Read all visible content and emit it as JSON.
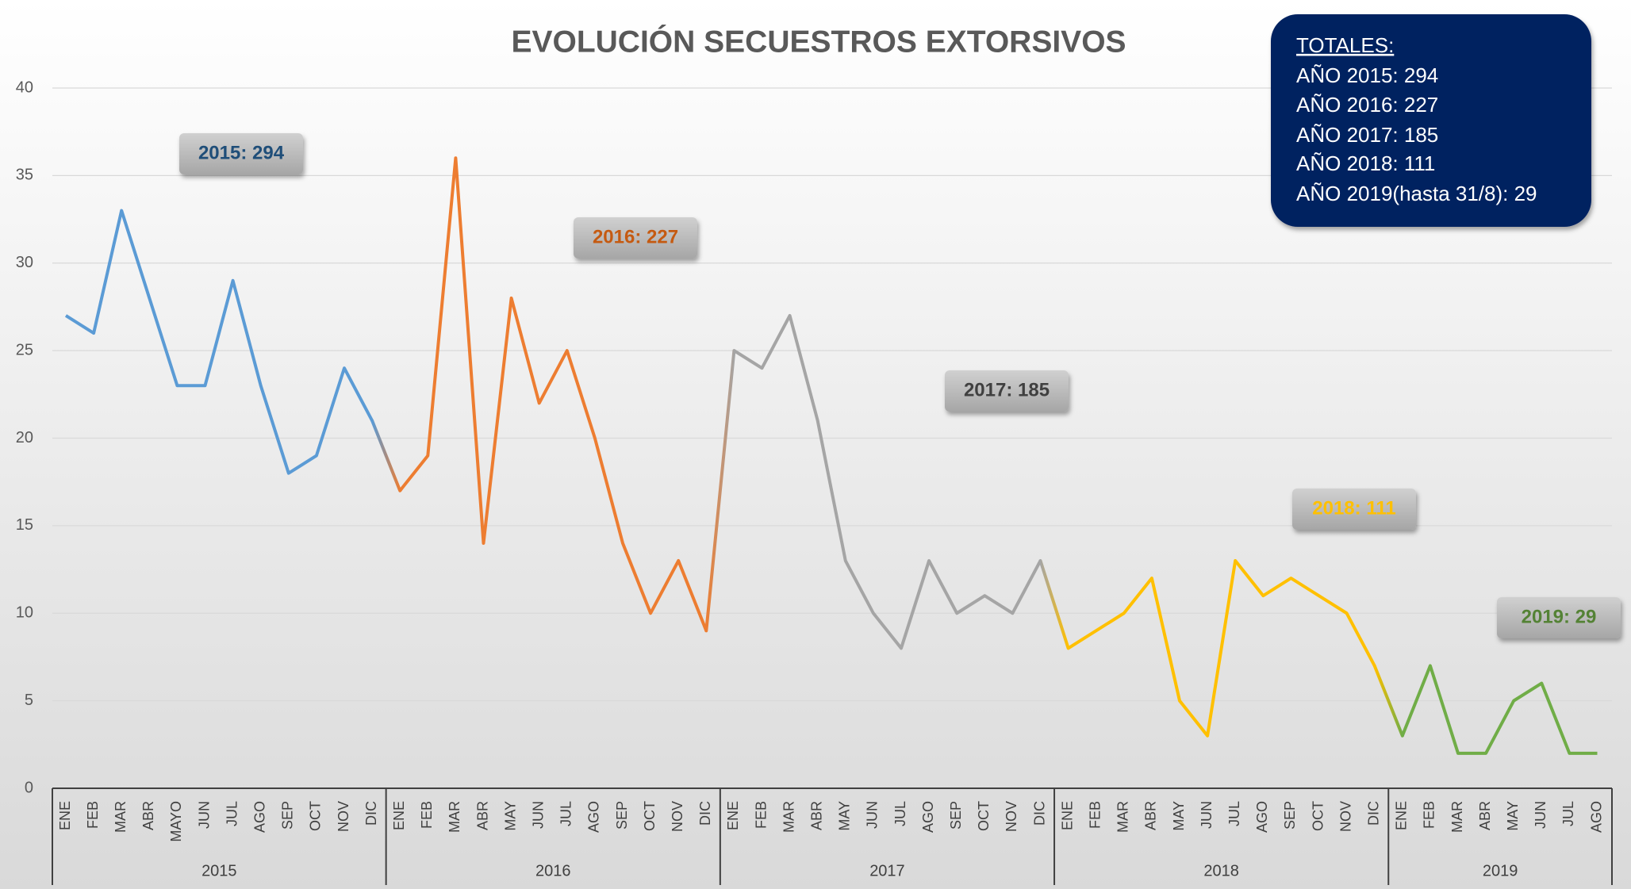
{
  "chart_data": {
    "type": "line",
    "title": "EVOLUCIÓN SECUESTROS EXTORSIVOS",
    "ylim": [
      0,
      40
    ],
    "yticks": [
      0,
      5,
      10,
      15,
      20,
      25,
      30,
      35,
      40
    ],
    "grid": true,
    "years": [
      {
        "label": "2015",
        "color": "#5b9bd5",
        "categories": [
          "ENE",
          "FEB",
          "MAR",
          "ABR",
          "MAYO",
          "JUN",
          "JUL",
          "AGO",
          "SEP",
          "OCT",
          "NOV",
          "DIC"
        ],
        "values": [
          27,
          26,
          33,
          28,
          23,
          23,
          29,
          23,
          18,
          19,
          24,
          21
        ]
      },
      {
        "label": "2016",
        "color": "#ed7d31",
        "categories": [
          "ENE",
          "FEB",
          "MAR",
          "ABR",
          "MAY",
          "JUN",
          "JUL",
          "AGO",
          "SEP",
          "OCT",
          "NOV",
          "DIC"
        ],
        "values": [
          17,
          19,
          36,
          14,
          28,
          22,
          25,
          20,
          14,
          10,
          13,
          9
        ]
      },
      {
        "label": "2017",
        "color": "#a5a5a5",
        "categories": [
          "ENE",
          "FEB",
          "MAR",
          "ABR",
          "MAY",
          "JUN",
          "JUL",
          "AGO",
          "SEP",
          "OCT",
          "NOV",
          "DIC"
        ],
        "values": [
          25,
          24,
          27,
          21,
          13,
          10,
          8,
          13,
          10,
          11,
          10,
          13
        ]
      },
      {
        "label": "2018",
        "color": "#ffc000",
        "categories": [
          "ENE",
          "FEB",
          "MAR",
          "ABR",
          "MAY",
          "JUN",
          "JUL",
          "AGO",
          "SEP",
          "OCT",
          "NOV",
          "DIC"
        ],
        "values": [
          8,
          9,
          10,
          12,
          5,
          3,
          13,
          11,
          12,
          11,
          10,
          7
        ]
      },
      {
        "label": "2019",
        "color": "#70ad47",
        "categories": [
          "ENE",
          "FEB",
          "MAR",
          "ABR",
          "MAY",
          "JUN",
          "JUL",
          "AGO"
        ],
        "values": [
          3,
          7,
          2,
          2,
          5,
          6,
          2,
          2
        ]
      }
    ],
    "annotations": [
      {
        "text": "2015: 294",
        "color": "#1f4e79"
      },
      {
        "text": "2016: 227",
        "color": "#c55a11"
      },
      {
        "text": "2017: 185",
        "color": "#404040"
      },
      {
        "text": "2018: 111",
        "color": "#ffc000"
      },
      {
        "text": "2019: 29",
        "color": "#548235"
      }
    ],
    "totals": [
      "TOTALES:",
      "AÑO 2015: 294",
      "AÑO 2016: 227",
      "AÑO 2017: 185",
      "AÑO 2018: 111",
      "AÑO 2019(hasta 31/8): 29"
    ]
  }
}
